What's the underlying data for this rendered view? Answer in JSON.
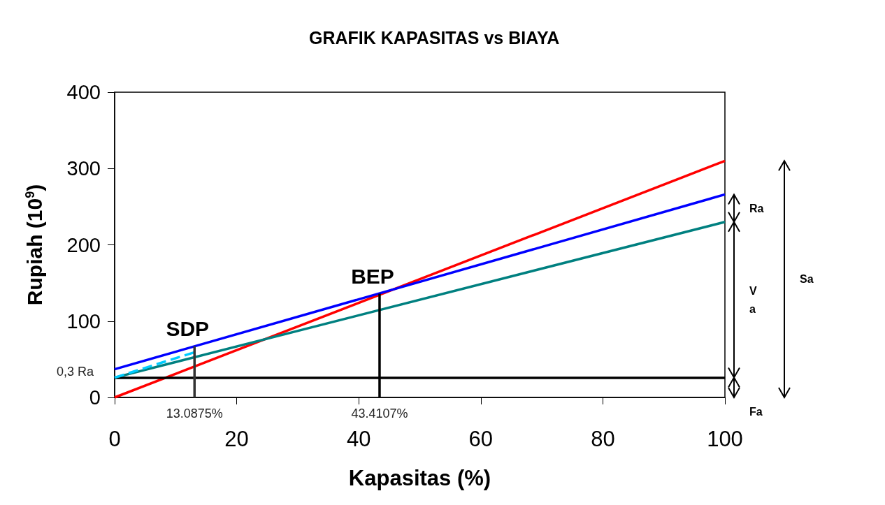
{
  "chart_data": {
    "type": "line",
    "title": "GRAFIK KAPASITAS vs BIAYA",
    "xlabel": "Kapasitas (%)",
    "ylabel": "Rupiah (10$^{9}$)",
    "x": [
      0,
      100
    ],
    "series": [
      {
        "color": "#ff0000",
        "values": [
          0,
          310
        ]
      },
      {
        "color": "#0000ff",
        "values": [
          37,
          266
        ]
      },
      {
        "color": "#008080",
        "values": [
          26,
          230
        ]
      },
      {
        "color": "#00ccff",
        "x": [
          0,
          13
        ],
        "values": [
          26,
          59
        ],
        "line_style": "dashed"
      },
      {
        "color": "#333333",
        "x": [
          13.0875,
          13.0875
        ],
        "values": [
          0,
          67
        ]
      },
      {
        "color": "#000000",
        "x": [
          43.4107,
          43.4107
        ],
        "values": [
          0,
          136
        ]
      }
    ],
    "ref_lines": [
      {
        "axis": "y",
        "value": 26,
        "color": "#000000"
      }
    ],
    "annotations": [
      {
        "text": "SDP",
        "x": 13.0875,
        "y": 67
      },
      {
        "text": "BEP",
        "x": 43.4107,
        "y": 136
      },
      {
        "text": "13.0875%",
        "x": 13.0875,
        "y": 0
      },
      {
        "text": "43.4107%",
        "x": 43.4107,
        "y": 0
      },
      {
        "text": "0,3 Ra",
        "x": 0,
        "y": 37
      },
      "Ra",
      "Va",
      "Fa",
      "Sa"
    ],
    "xlim": [
      0,
      100
    ],
    "xticks": [
      0,
      20,
      40,
      60,
      80,
      100
    ],
    "ylim": [
      0,
      400
    ],
    "yticks": [
      0,
      100,
      200,
      300,
      400
    ],
    "grid": false,
    "marker": "none",
    "line_style": "solid"
  }
}
